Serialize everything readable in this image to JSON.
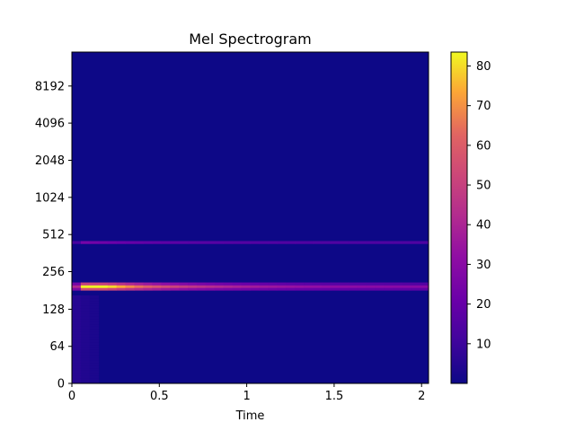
{
  "chart_data": {
    "type": "heatmap",
    "title": "Mel Spectrogram",
    "xlabel": "Time",
    "ylabel": "",
    "x_ticks": [
      "0",
      "0.5",
      "1",
      "1.5",
      "2"
    ],
    "x_tick_values": [
      0,
      0.5,
      1,
      1.5,
      2
    ],
    "xlim": [
      0,
      2.04
    ],
    "y_scale": "mel",
    "y_ticks": [
      "0",
      "64",
      "128",
      "256",
      "512",
      "1024",
      "2048",
      "4096",
      "8192"
    ],
    "colormap": "plasma",
    "colorbar": {
      "ticks": [
        "10",
        "20",
        "30",
        "40",
        "50",
        "60",
        "70",
        "80"
      ],
      "tick_values": [
        10,
        20,
        30,
        40,
        50,
        60,
        70,
        80
      ],
      "range": [
        0,
        83.5
      ]
    },
    "time_frames": 40,
    "mel_bins": 128,
    "bands": [
      {
        "mel_bin": 37,
        "peak": 83,
        "peak_time": 0.2,
        "decay_to": 28
      },
      {
        "mel_bin": 36,
        "peak": 55,
        "peak_time": 0.2,
        "decay_to": 18
      },
      {
        "mel_bin": 38,
        "peak": 50,
        "peak_time": 0.2,
        "decay_to": 15
      },
      {
        "mel_bin": 54,
        "peak": 25,
        "peak_time": 0.05,
        "decay_to": 14
      }
    ],
    "grid": false,
    "legend": "none"
  },
  "colors": {
    "background": "#0d0887",
    "low": "#0d0887",
    "mid": "#cc4778",
    "high": "#f0f921"
  }
}
